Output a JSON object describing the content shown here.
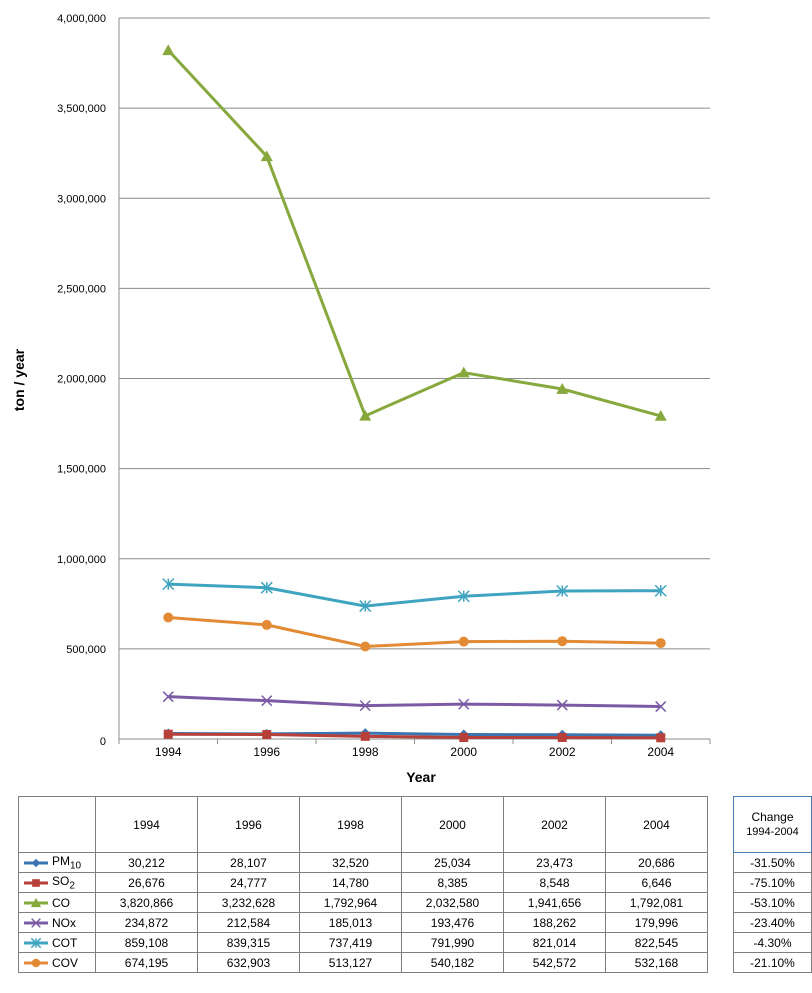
{
  "chart_data": {
    "type": "line",
    "xlabel": "Year",
    "ylabel": "ton / year",
    "ylim": [
      0,
      4000000
    ],
    "y_ticks": [
      "0",
      "500,000",
      "1,000,000",
      "1,500,000",
      "2,000,000",
      "2,500,000",
      "3,000,000",
      "3,500,000",
      "4,000,000"
    ],
    "categories": [
      "1994",
      "1996",
      "1998",
      "2000",
      "2002",
      "2004"
    ],
    "grid": "horizontal",
    "legend": "data table below chart",
    "series": [
      {
        "name": "PM",
        "subscript": "10",
        "color": "#3a75b0",
        "marker": "diamond",
        "values": [
          30212,
          28107,
          32520,
          25034,
          23473,
          20686
        ],
        "labels": [
          "30,212",
          "28,107",
          "32,520",
          "25,034",
          "23,473",
          "20,686"
        ],
        "change": "-31.50%"
      },
      {
        "name": "SO",
        "subscript": "2",
        "color": "#b8403a",
        "marker": "square",
        "values": [
          26676,
          24777,
          14780,
          8385,
          8548,
          6646
        ],
        "labels": [
          "26,676",
          "24,777",
          "14,780",
          "8,385",
          "8,548",
          "6,646"
        ],
        "change": "-75.10%"
      },
      {
        "name": "CO",
        "subscript": "",
        "color": "#86a83c",
        "marker": "triangle",
        "values": [
          3820866,
          3232628,
          1792964,
          2032580,
          1941656,
          1792081
        ],
        "labels": [
          "3,820,866",
          "3,232,628",
          "1,792,964",
          "2,032,580",
          "1,941,656",
          "1,792,081"
        ],
        "change": "-53.10%"
      },
      {
        "name": "NOx",
        "subscript": "",
        "color": "#7b5ca4",
        "marker": "x",
        "values": [
          234872,
          212584,
          185013,
          193476,
          188262,
          179996
        ],
        "labels": [
          "234,872",
          "212,584",
          "185,013",
          "193,476",
          "188,262",
          "179,996"
        ],
        "change": "-23.40%"
      },
      {
        "name": "COT",
        "subscript": "",
        "color": "#3ea4c0",
        "marker": "star",
        "values": [
          859108,
          839315,
          737419,
          791990,
          821014,
          822545
        ],
        "labels": [
          "859,108",
          "839,315",
          "737,419",
          "791,990",
          "821,014",
          "822,545"
        ],
        "change": "-4.30%"
      },
      {
        "name": "COV",
        "subscript": "",
        "color": "#e38a35",
        "marker": "circle",
        "values": [
          674195,
          632903,
          513127,
          540182,
          542572,
          532168
        ],
        "labels": [
          "674,195",
          "632,903",
          "513,127",
          "540,182",
          "542,572",
          "532,168"
        ],
        "change": "-21.10%"
      }
    ],
    "change_header": [
      "Change",
      "1994-2004"
    ]
  }
}
